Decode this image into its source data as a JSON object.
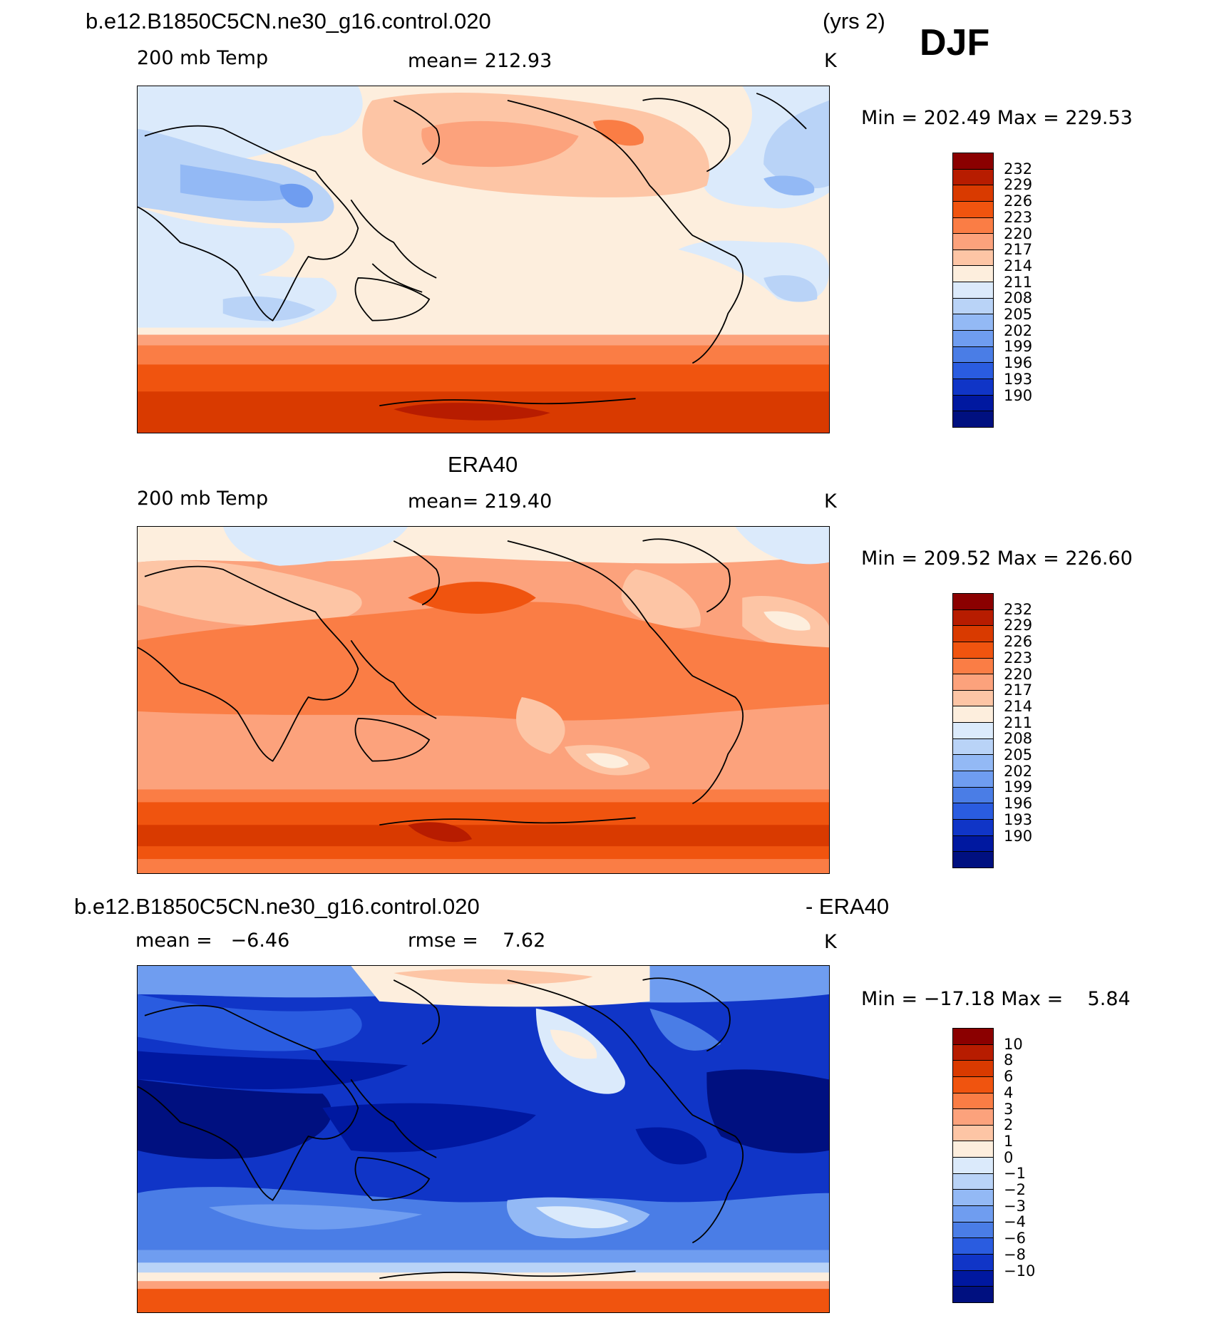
{
  "season": "DJF",
  "panels": [
    {
      "id": "model",
      "title": "b.e12.B1850C5CN.ne30_g16.control.020",
      "title_right": "(yrs 2)",
      "left_label": "200 mb Temp",
      "center_label": "mean= 212.93",
      "units": "K",
      "minmax": "Min = 202.49 Max = 229.53",
      "colorbar_ticks": [
        "232",
        "229",
        "226",
        "223",
        "220",
        "217",
        "214",
        "211",
        "208",
        "205",
        "202",
        "199",
        "196",
        "193",
        "190"
      ]
    },
    {
      "id": "obs",
      "title": "ERA40",
      "left_label": "200 mb Temp",
      "center_label": "mean= 219.40",
      "units": "K",
      "minmax": "Min = 209.52 Max = 226.60",
      "colorbar_ticks": [
        "232",
        "229",
        "226",
        "223",
        "220",
        "217",
        "214",
        "211",
        "208",
        "205",
        "202",
        "199",
        "196",
        "193",
        "190"
      ]
    },
    {
      "id": "diff",
      "title": "b.e12.B1850C5CN.ne30_g16.control.020",
      "title_right": "- ERA40",
      "left_label": "mean =   −6.46",
      "center_label": "rmse =    7.62",
      "units": "K",
      "minmax": "Min = −17.18 Max =    5.84",
      "colorbar_ticks": [
        "10",
        "8",
        "6",
        "4",
        "3",
        "2",
        "1",
        "0",
        "−1",
        "−2",
        "−3",
        "−4",
        "−6",
        "−8",
        "−10"
      ]
    }
  ],
  "colorbar_colors": [
    "#8b0000",
    "#b71c00",
    "#d93a00",
    "#f0540f",
    "#fa7d45",
    "#fca27c",
    "#fdc5a5",
    "#fdeedd",
    "#dbeafb",
    "#b9d3f7",
    "#93b9f5",
    "#6f9df0",
    "#4a7de6",
    "#2a5ce0",
    "#1035c7",
    "#0018a0",
    "#001080"
  ]
}
